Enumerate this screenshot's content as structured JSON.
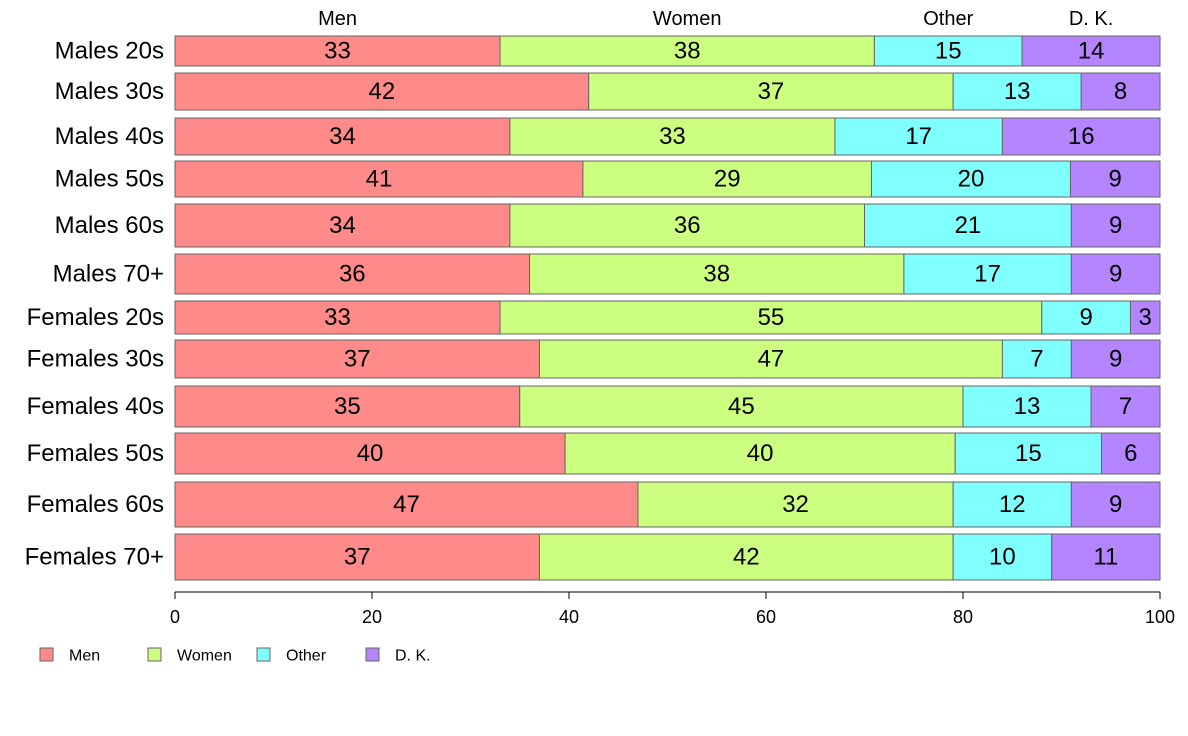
{
  "chart_data": {
    "type": "bar",
    "orientation": "horizontal",
    "stacked": true,
    "categories": [
      "Males 20s",
      "Males 30s",
      "Males 40s",
      "Males 50s",
      "Males 60s",
      "Males 70+",
      "Females 20s",
      "Females 30s",
      "Females 40s",
      "Females 50s",
      "Females 60s",
      "Females 70+"
    ],
    "series": [
      {
        "name": "Men",
        "color": "#ff8a8a",
        "values": [
          33,
          42,
          34,
          41,
          34,
          36,
          33,
          37,
          35,
          40,
          47,
          37
        ]
      },
      {
        "name": "Women",
        "color": "#ccff80",
        "values": [
          38,
          37,
          33,
          29,
          36,
          38,
          55,
          47,
          45,
          40,
          32,
          42
        ]
      },
      {
        "name": "Other",
        "color": "#80ffff",
        "values": [
          15,
          13,
          17,
          20,
          21,
          17,
          9,
          7,
          13,
          15,
          12,
          10
        ]
      },
      {
        "name": "D. K.",
        "color": "#b585ff",
        "values": [
          14,
          8,
          16,
          9,
          9,
          9,
          3,
          9,
          7,
          6,
          9,
          11
        ]
      }
    ],
    "top_labels": [
      "Men",
      "Women",
      "Other",
      "D. K."
    ],
    "xlim": [
      0,
      100
    ],
    "xticks": [
      0,
      20,
      40,
      60,
      80,
      100
    ],
    "legend_placement": "bottom-left",
    "grid": false
  }
}
